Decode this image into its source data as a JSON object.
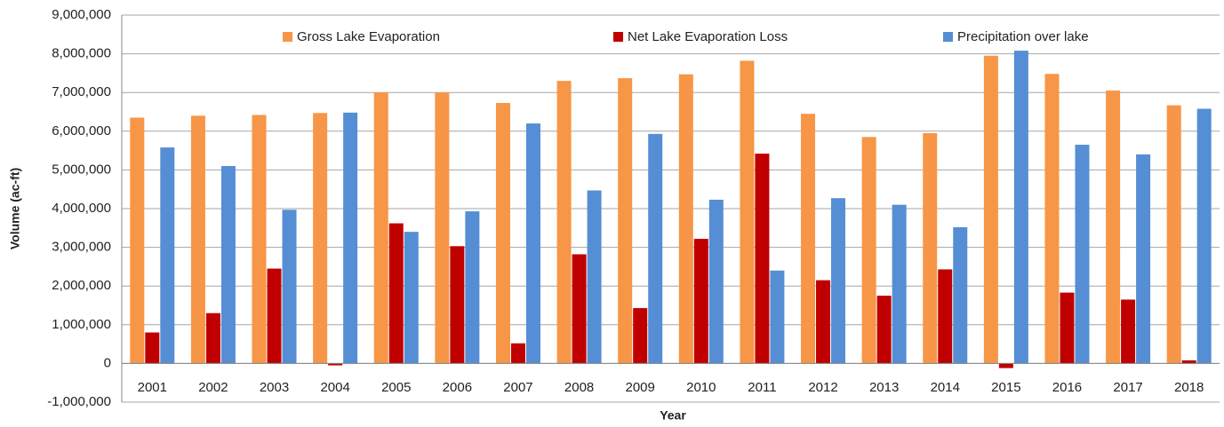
{
  "chart_data": {
    "type": "bar",
    "x_label": "Year",
    "y_label": "Volume (ac-ft)",
    "categories": [
      "2001",
      "2002",
      "2003",
      "2004",
      "2005",
      "2006",
      "2007",
      "2008",
      "2009",
      "2010",
      "2011",
      "2012",
      "2013",
      "2014",
      "2015",
      "2016",
      "2017",
      "2018"
    ],
    "series": [
      {
        "name": "Gross Lake Evaporation",
        "color": "#f79646",
        "values": [
          6350000,
          6400000,
          6420000,
          6470000,
          7000000,
          7000000,
          6730000,
          7300000,
          7370000,
          7470000,
          7820000,
          6450000,
          5850000,
          5950000,
          7950000,
          7480000,
          7050000,
          6670000
        ]
      },
      {
        "name": "Net Lake Evaporation Loss",
        "color": "#c00000",
        "values": [
          800000,
          1300000,
          2450000,
          -50000,
          3620000,
          3030000,
          520000,
          2820000,
          1430000,
          3220000,
          5420000,
          2150000,
          1750000,
          2430000,
          -120000,
          1830000,
          1650000,
          80000
        ]
      },
      {
        "name": "Precipitation over lake",
        "color": "#558ed5",
        "values": [
          5580000,
          5100000,
          3970000,
          6480000,
          3400000,
          3930000,
          6200000,
          4470000,
          5930000,
          4230000,
          2400000,
          4270000,
          4100000,
          3520000,
          8080000,
          5650000,
          5400000,
          6580000
        ]
      }
    ],
    "ylim": [
      -1000000,
      9000000
    ],
    "yticks": [
      {
        "value": -1000000,
        "label": "-1,000,000"
      },
      0,
      {
        "value": 1000000,
        "label": "1,000,000"
      },
      {
        "value": 2000000,
        "label": "2,000,000"
      },
      {
        "value": 3000000,
        "label": "3,000,000"
      },
      {
        "value": 4000000,
        "label": "4,000,000"
      },
      {
        "value": 5000000,
        "label": "5,000,000"
      },
      {
        "value": 6000000,
        "label": "6,000,000"
      },
      {
        "value": 7000000,
        "label": "7,000,000"
      },
      {
        "value": 8000000,
        "label": "8,000,000"
      },
      {
        "value": 9000000,
        "label": "9,000,000"
      }
    ],
    "grid": true,
    "legend": "top"
  }
}
